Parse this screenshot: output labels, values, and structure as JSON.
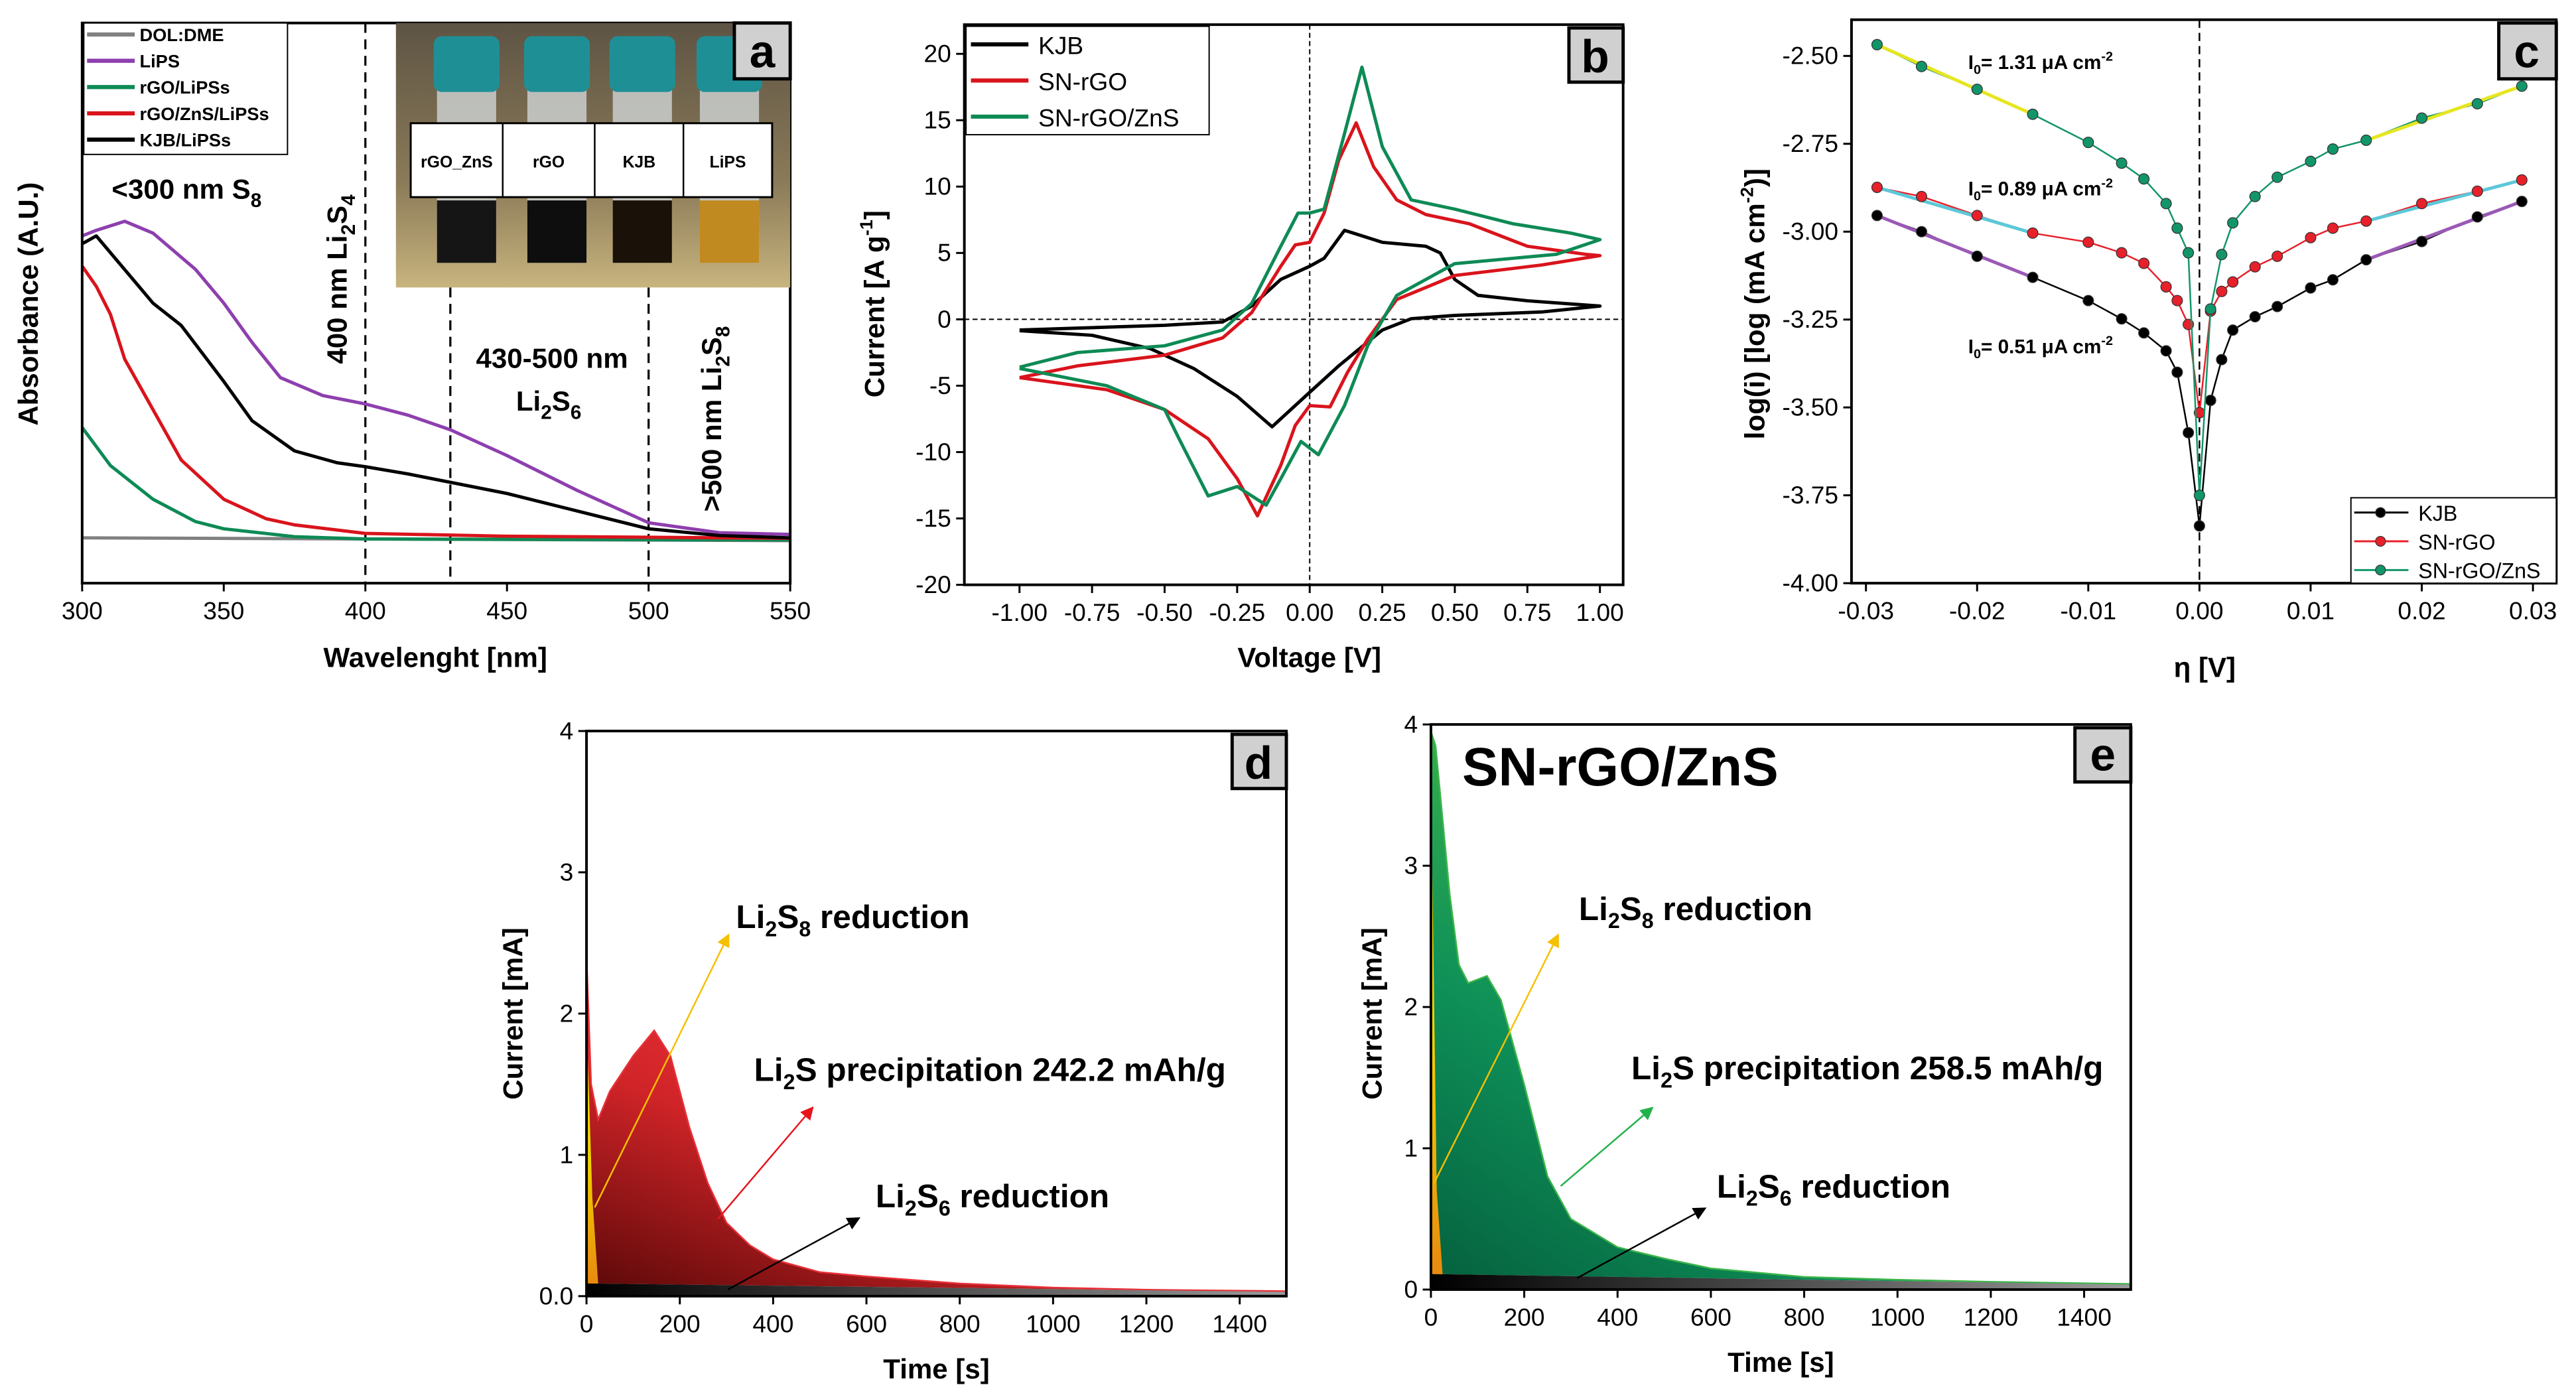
{
  "panel_labels": {
    "a": "a",
    "b": "b",
    "c": "c",
    "d": "d",
    "e": "e"
  },
  "chart_data": [
    {
      "panel": "a",
      "type": "line",
      "xlabel": "Wavelenght [nm]",
      "ylabel": "Absorbance (A.U.)",
      "xlim": [
        300,
        550
      ],
      "ylim": [
        0,
        1
      ],
      "xticks": [
        "300",
        "350",
        "400",
        "450",
        "500",
        "550"
      ],
      "grid": false,
      "legend_position": "top-left",
      "reference_lines_nm": [
        400,
        430,
        500
      ],
      "series": [
        {
          "name": "DOL:DME",
          "color": "#808080",
          "x": [
            300,
            550
          ],
          "y": [
            0.081,
            0.076
          ]
        },
        {
          "name": "LiPS",
          "color": "#8e3fae",
          "x": [
            300,
            305,
            315,
            325,
            340,
            350,
            360,
            370,
            385,
            400,
            415,
            430,
            450,
            475,
            500,
            525,
            550
          ],
          "y": [
            0.62,
            0.63,
            0.646,
            0.625,
            0.56,
            0.5,
            0.43,
            0.367,
            0.335,
            0.32,
            0.3,
            0.274,
            0.228,
            0.165,
            0.108,
            0.09,
            0.087
          ]
        },
        {
          "name": "rGO/LiPSs",
          "color": "#0e8a55",
          "x": [
            300,
            310,
            325,
            340,
            350,
            375,
            400,
            550
          ],
          "y": [
            0.278,
            0.21,
            0.15,
            0.11,
            0.097,
            0.083,
            0.079,
            0.077
          ]
        },
        {
          "name": "rGO/ZnS/LiPSs",
          "color": "#d9141c",
          "x": [
            300,
            305,
            310,
            315,
            325,
            335,
            350,
            365,
            375,
            400,
            450,
            550
          ],
          "y": [
            0.566,
            0.53,
            0.48,
            0.4,
            0.31,
            0.22,
            0.15,
            0.115,
            0.104,
            0.089,
            0.084,
            0.08
          ]
        },
        {
          "name": "KJB/LiPSs",
          "color": "#000000",
          "x": [
            300,
            305,
            310,
            320,
            325,
            335,
            350,
            360,
            375,
            390,
            400,
            415,
            430,
            450,
            470,
            500,
            525,
            550
          ],
          "y": [
            0.606,
            0.62,
            0.59,
            0.53,
            0.5,
            0.46,
            0.36,
            0.29,
            0.236,
            0.215,
            0.208,
            0.195,
            0.18,
            0.16,
            0.135,
            0.097,
            0.085,
            0.081
          ]
        }
      ],
      "annotations": {
        "s8": [
          "<300 nm S",
          "8"
        ],
        "li2s4": [
          "400 nm Li",
          "2",
          "S",
          "4"
        ],
        "li2s6_range": "430-500 nm",
        "li2s6": [
          "Li",
          "2",
          "S",
          "6"
        ],
        "li2s8": [
          ">500 nm Li",
          "2",
          "S",
          "8"
        ]
      },
      "inset_photo": {
        "labels": [
          {
            "text": "rGO_ZnS",
            "color": "#0e8a55"
          },
          {
            "text": "rGO",
            "color": "#d9141c"
          },
          {
            "text": "KJB",
            "color": "#000000"
          },
          {
            "text": "LiPS",
            "color": "#a030b0"
          }
        ]
      }
    },
    {
      "panel": "b",
      "type": "line",
      "xlabel": "Voltage [V]",
      "ylabel": [
        "Current [A g",
        "-1",
        "]"
      ],
      "xlim": [
        -1.19,
        1.08
      ],
      "ylim": [
        -20,
        22.2
      ],
      "xticks": [
        "-1.00",
        "-0.75",
        "-0.50",
        "-0.25",
        "0.00",
        "0.25",
        "0.50",
        "0.75",
        "1.00"
      ],
      "yticks": [
        "-20",
        "-15",
        "-10",
        "-5",
        "0",
        "5",
        "10",
        "15",
        "20"
      ],
      "grid": false,
      "legend_position": "top-left",
      "series": [
        {
          "name": "KJB",
          "color": "#000000",
          "x": [
            -1,
            -0.5,
            -0.3,
            -0.2,
            -0.1,
            0,
            0.05,
            0.12,
            0.25,
            0.4,
            0.45,
            0.5,
            0.58,
            0.75,
            1,
            0.8,
            0.5,
            0.35,
            0.25,
            0.1,
            0,
            -0.13,
            -0.25,
            -0.4,
            -0.55,
            -0.75,
            -1
          ],
          "y": [
            -0.8,
            -0.45,
            -0.2,
            1,
            3,
            4,
            4.6,
            6.7,
            5.8,
            5.5,
            5,
            3,
            1.8,
            1.4,
            1,
            0.55,
            0.3,
            0.05,
            -0.8,
            -3.5,
            -5.5,
            -8.1,
            -5.8,
            -3.7,
            -2.2,
            -1.2,
            -0.85
          ]
        },
        {
          "name": "SN-rGO",
          "color": "#d9141c",
          "x": [
            -1,
            -0.8,
            -0.5,
            -0.3,
            -0.2,
            -0.1,
            -0.05,
            0,
            0.05,
            0.1,
            0.16,
            0.22,
            0.3,
            0.4,
            0.55,
            0.75,
            0.95,
            1,
            0.8,
            0.5,
            0.3,
            0.2,
            0.13,
            0.07,
            0,
            -0.05,
            -0.1,
            -0.18,
            -0.25,
            -0.35,
            -0.5,
            -0.7,
            -1
          ],
          "y": [
            -4.4,
            -3.5,
            -2.7,
            -1.4,
            0.5,
            4,
            5.6,
            5.8,
            8,
            12,
            14.8,
            11.5,
            9,
            7.9,
            7.2,
            5.5,
            4.9,
            4.8,
            4.1,
            3.3,
            1.5,
            -1.5,
            -4,
            -6.6,
            -6.5,
            -8,
            -11,
            -14.8,
            -12,
            -9,
            -6.8,
            -5.3,
            -4.4
          ]
        },
        {
          "name": "SN-rGO/ZnS",
          "color": "#0e8a55",
          "x": [
            -1,
            -0.8,
            -0.5,
            -0.3,
            -0.2,
            -0.1,
            -0.04,
            0,
            0.05,
            0.12,
            0.18,
            0.25,
            0.35,
            0.5,
            0.7,
            0.9,
            1,
            0.85,
            0.5,
            0.3,
            0.2,
            0.12,
            0.03,
            -0.03,
            -0.1,
            -0.15,
            -0.25,
            -0.35,
            -0.45,
            -0.5,
            -0.7,
            -1
          ],
          "y": [
            -3.6,
            -2.5,
            -2,
            -0.8,
            1.2,
            5.5,
            8,
            8,
            8.3,
            14,
            19,
            13,
            9,
            8.3,
            7.2,
            6.5,
            6,
            4.9,
            4.2,
            1.8,
            -2,
            -6.5,
            -10.2,
            -9.2,
            -12,
            -14,
            -12.6,
            -13.3,
            -9,
            -6.8,
            -5,
            -3.7
          ]
        }
      ]
    },
    {
      "panel": "c",
      "type": "scatter",
      "xlabel": "η [V]",
      "ylabel": [
        "log(i) [log (mA cm",
        "-2",
        ")]"
      ],
      "xlim": [
        -0.0313,
        0.0321
      ],
      "ylim": [
        -4.0,
        -2.397
      ],
      "xticks": [
        "-0.03",
        "-0.02",
        "-0.01",
        "0.00",
        "0.01",
        "0.02",
        "0.03"
      ],
      "yticks": [
        "-4.00",
        "-3.75",
        "-3.50",
        "-3.25",
        "-3.00",
        "-2.75",
        "-2.50"
      ],
      "grid": false,
      "legend_position": "bottom-right",
      "x": [
        -0.029,
        -0.025,
        -0.02,
        -0.015,
        -0.01,
        -0.007,
        -0.005,
        -0.003,
        -0.002,
        -0.001,
        0,
        0.001,
        0.002,
        0.003,
        0.005,
        0.007,
        0.01,
        0.012,
        0.015,
        0.02,
        0.025,
        0.029
      ],
      "series": [
        {
          "name": "KJB",
          "color": "#000000",
          "fit_color": "#9b59b6",
          "y": [
            -2.954,
            -3.0,
            -3.07,
            -3.13,
            -3.196,
            -3.248,
            -3.288,
            -3.339,
            -3.4,
            -3.572,
            -3.837,
            -3.48,
            -3.364,
            -3.28,
            -3.242,
            -3.213,
            -3.16,
            -3.137,
            -3.08,
            -3.028,
            -2.958,
            -2.914
          ]
        },
        {
          "name": "SN-rGO",
          "color": "#e8202a",
          "fit_color": "#5bc8d8",
          "y": [
            -2.874,
            -2.9,
            -2.954,
            -3.004,
            -3.03,
            -3.06,
            -3.09,
            -3.157,
            -3.196,
            -3.264,
            -3.515,
            -3.226,
            -3.17,
            -3.143,
            -3.1,
            -3.07,
            -3.017,
            -2.99,
            -2.97,
            -2.92,
            -2.885,
            -2.853
          ]
        },
        {
          "name": "SN-rGO/ZnS",
          "color": "#13956a",
          "fit_color": "#e6e620",
          "y": [
            -2.468,
            -2.53,
            -2.595,
            -2.666,
            -2.746,
            -2.805,
            -2.85,
            -2.92,
            -2.99,
            -3.06,
            -3.75,
            -3.22,
            -3.065,
            -2.975,
            -2.9,
            -2.845,
            -2.8,
            -2.765,
            -2.74,
            -2.677,
            -2.636,
            -2.586
          ]
        }
      ],
      "annotations": [
        {
          "parts": [
            "I",
            "0",
            "= 1.31 μA cm",
            "-2"
          ],
          "color": "#13956a"
        },
        {
          "parts": [
            "I",
            "0",
            "= 0.89 μA cm",
            "-2"
          ],
          "color": "#e8202a"
        },
        {
          "parts": [
            "I",
            "0",
            "= 0.51 μA cm",
            "-2"
          ],
          "color": "#000000"
        }
      ]
    },
    {
      "panel": "d",
      "type": "area",
      "xlabel": "Time [s]",
      "ylabel": "Current [mA]",
      "xlim": [
        0,
        1500
      ],
      "ylim": [
        0,
        4
      ],
      "xticks": [
        "0",
        "200",
        "400",
        "600",
        "800",
        "1000",
        "1200",
        "1400"
      ],
      "yticks": [
        "0.0",
        "1",
        "2",
        "3",
        "4"
      ],
      "fill_color": "#e83038",
      "x": [
        0,
        10,
        25,
        50,
        100,
        145,
        180,
        220,
        260,
        300,
        350,
        400,
        500,
        600,
        800,
        1000,
        1200,
        1500
      ],
      "y": [
        2.4,
        1.5,
        1.25,
        1.45,
        1.7,
        1.88,
        1.7,
        1.2,
        0.8,
        0.52,
        0.36,
        0.26,
        0.17,
        0.14,
        0.09,
        0.06,
        0.045,
        0.035
      ],
      "li2s6_baseline": [
        0.09,
        0.03
      ],
      "li2s8_region_end_s": 25,
      "annotations": {
        "li2s8": {
          "parts": [
            "Li",
            "2",
            "S",
            "8",
            " reduction"
          ],
          "color": "#f5c000"
        },
        "li2s": {
          "parts": [
            "Li",
            "2",
            "S precipitation 242.2 mAh/g"
          ],
          "color": "#e8141c"
        },
        "li2s6": {
          "parts": [
            "Li",
            "2",
            "S",
            "6",
            " reduction"
          ],
          "color": "#000000"
        }
      }
    },
    {
      "panel": "e",
      "type": "area",
      "title": "SN-rGO/ZnS",
      "xlabel": "Time [s]",
      "ylabel": "Current [mA]",
      "xlim": [
        0,
        1500
      ],
      "ylim": [
        0,
        4
      ],
      "xticks": [
        "0",
        "200",
        "400",
        "600",
        "800",
        "1000",
        "1200",
        "1400"
      ],
      "yticks": [
        "0",
        "1",
        "2",
        "3",
        "4"
      ],
      "fill_color": "#3db54a",
      "x": [
        0,
        10,
        20,
        40,
        60,
        80,
        120,
        150,
        200,
        250,
        300,
        400,
        500,
        600,
        800,
        1000,
        1200,
        1500
      ],
      "y": [
        3.95,
        3.85,
        3.5,
        2.8,
        2.3,
        2.17,
        2.22,
        2.05,
        1.45,
        0.8,
        0.5,
        0.3,
        0.22,
        0.15,
        0.09,
        0.07,
        0.055,
        0.04
      ],
      "li2s6_baseline": [
        0.11,
        0.035
      ],
      "li2s8_region_end_s": 25,
      "annotations": {
        "li2s8": {
          "parts": [
            "Li",
            "2",
            "S",
            "8",
            " reduction"
          ],
          "color": "#f5c000"
        },
        "li2s": {
          "parts": [
            "Li",
            "2",
            "S precipitation 258.5 mAh/g"
          ],
          "color": "#22b24c"
        },
        "li2s6": {
          "parts": [
            "Li",
            "2",
            "S",
            "6",
            " reduction"
          ],
          "color": "#000000"
        }
      }
    }
  ]
}
